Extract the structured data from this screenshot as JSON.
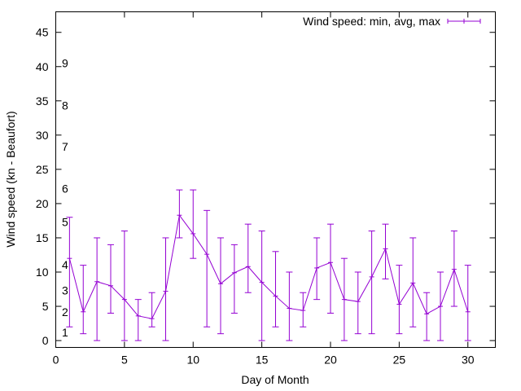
{
  "chart_data": {
    "type": "line",
    "xlabel": "Day of Month",
    "ylabel": "Wind speed (kn - Beaufort)",
    "xlim": [
      0,
      32
    ],
    "ylim": [
      -1,
      48
    ],
    "xticks": [
      0,
      5,
      10,
      15,
      20,
      25,
      30
    ],
    "yticks": [
      0,
      5,
      10,
      15,
      20,
      25,
      30,
      35,
      40,
      45
    ],
    "grid": false,
    "legend_position": "top-right",
    "series_color": "#9400d3",
    "series": [
      {
        "name": "Wind speed: min, avg, max",
        "x": [
          1,
          2,
          3,
          4,
          5,
          6,
          7,
          8,
          9,
          10,
          11,
          12,
          13,
          14,
          15,
          16,
          17,
          18,
          19,
          20,
          21,
          22,
          23,
          24,
          25,
          26,
          27,
          28,
          29,
          30
        ],
        "y": [
          12,
          4.2,
          8.6,
          8.0,
          6.0,
          3.6,
          3.2,
          7.2,
          18.3,
          15.6,
          12.6,
          8.3,
          9.9,
          10.8,
          8.5,
          6.5,
          4.7,
          4.4,
          10.6,
          11.4,
          6.0,
          5.7,
          9.3,
          13.4,
          5.3,
          8.4,
          3.9,
          5.0,
          10.4,
          4.2
        ],
        "min": [
          2,
          1,
          0,
          4,
          0,
          0,
          2,
          0,
          15,
          12,
          2,
          1,
          4,
          7,
          0,
          2,
          0,
          2,
          6,
          4,
          0,
          1,
          1,
          9,
          1,
          2,
          0,
          0,
          5,
          0
        ],
        "max": [
          18,
          11,
          15,
          14,
          16,
          6,
          7,
          15,
          22,
          22,
          19,
          15,
          14,
          17,
          16,
          13,
          10,
          7,
          15,
          17,
          12,
          10,
          16,
          17,
          11,
          15,
          7,
          10,
          16,
          11
        ]
      }
    ],
    "annotations": [
      {
        "text": "1",
        "y": 1.2
      },
      {
        "text": "2",
        "y": 4.2
      },
      {
        "text": "3",
        "y": 7.3
      },
      {
        "text": "4",
        "y": 11.1
      },
      {
        "text": "5",
        "y": 17.3
      },
      {
        "text": "6",
        "y": 22.2
      },
      {
        "text": "7",
        "y": 28.3
      },
      {
        "text": "8",
        "y": 34.3
      },
      {
        "text": "9",
        "y": 40.5
      }
    ]
  }
}
